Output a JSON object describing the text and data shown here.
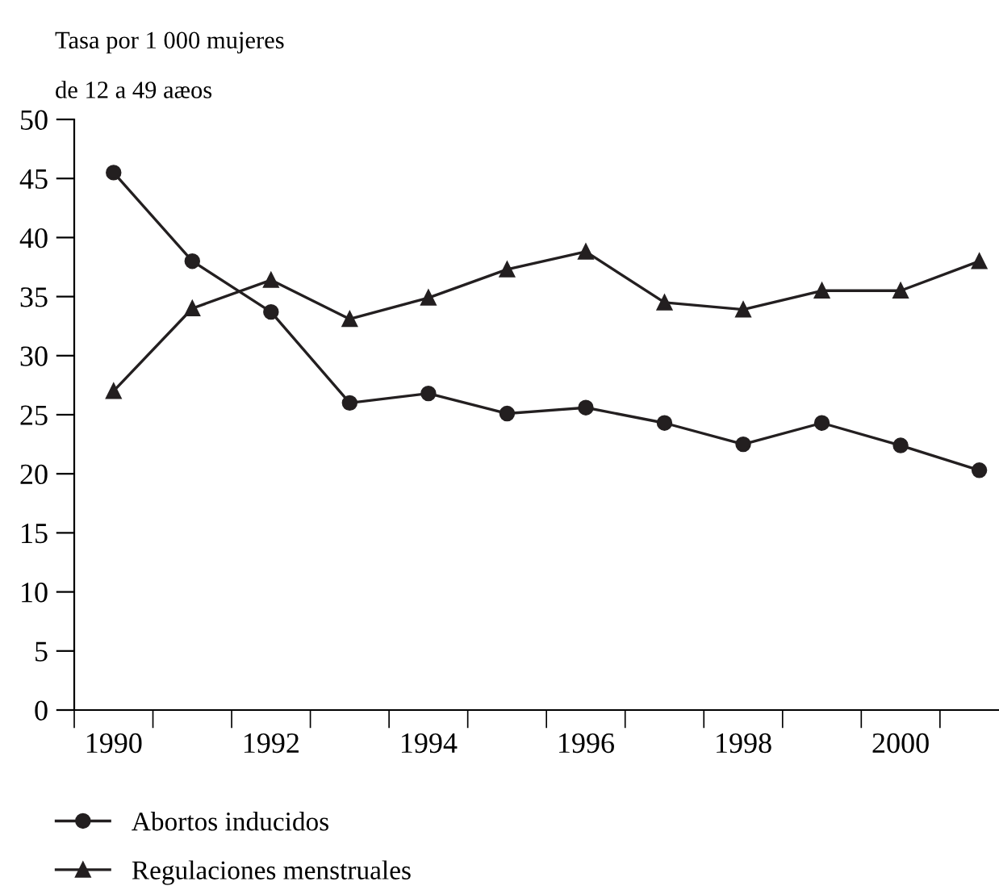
{
  "chart_data": {
    "type": "line",
    "ylabel": "Tasa por 1 000 mujeres\nde 12 a 49 aæos",
    "categories": [
      "1990",
      null,
      "1992",
      null,
      "1994",
      null,
      "1996",
      null,
      "1998",
      null,
      "2000",
      null
    ],
    "series": [
      {
        "name": "Abortos inducidos",
        "color": "#231f20",
        "marker": "circle",
        "values": [
          45.5,
          38,
          33.7,
          26,
          26.8,
          25.1,
          25.6,
          24.3,
          22.5,
          24.3,
          22.4,
          20.3
        ]
      },
      {
        "name": "Regulaciones menstruales",
        "color": "#231f20",
        "marker": "triangle",
        "values": [
          27,
          34,
          36.4,
          33.1,
          34.9,
          37.3,
          38.8,
          34.5,
          33.9,
          35.5,
          35.5,
          38
        ]
      }
    ],
    "ylim": [
      0,
      50
    ],
    "yticks": [
      0,
      5,
      10,
      15,
      20,
      25,
      30,
      35,
      40,
      45,
      50
    ],
    "grid": false,
    "legend": "bottom left",
    "line_style": "solid"
  }
}
